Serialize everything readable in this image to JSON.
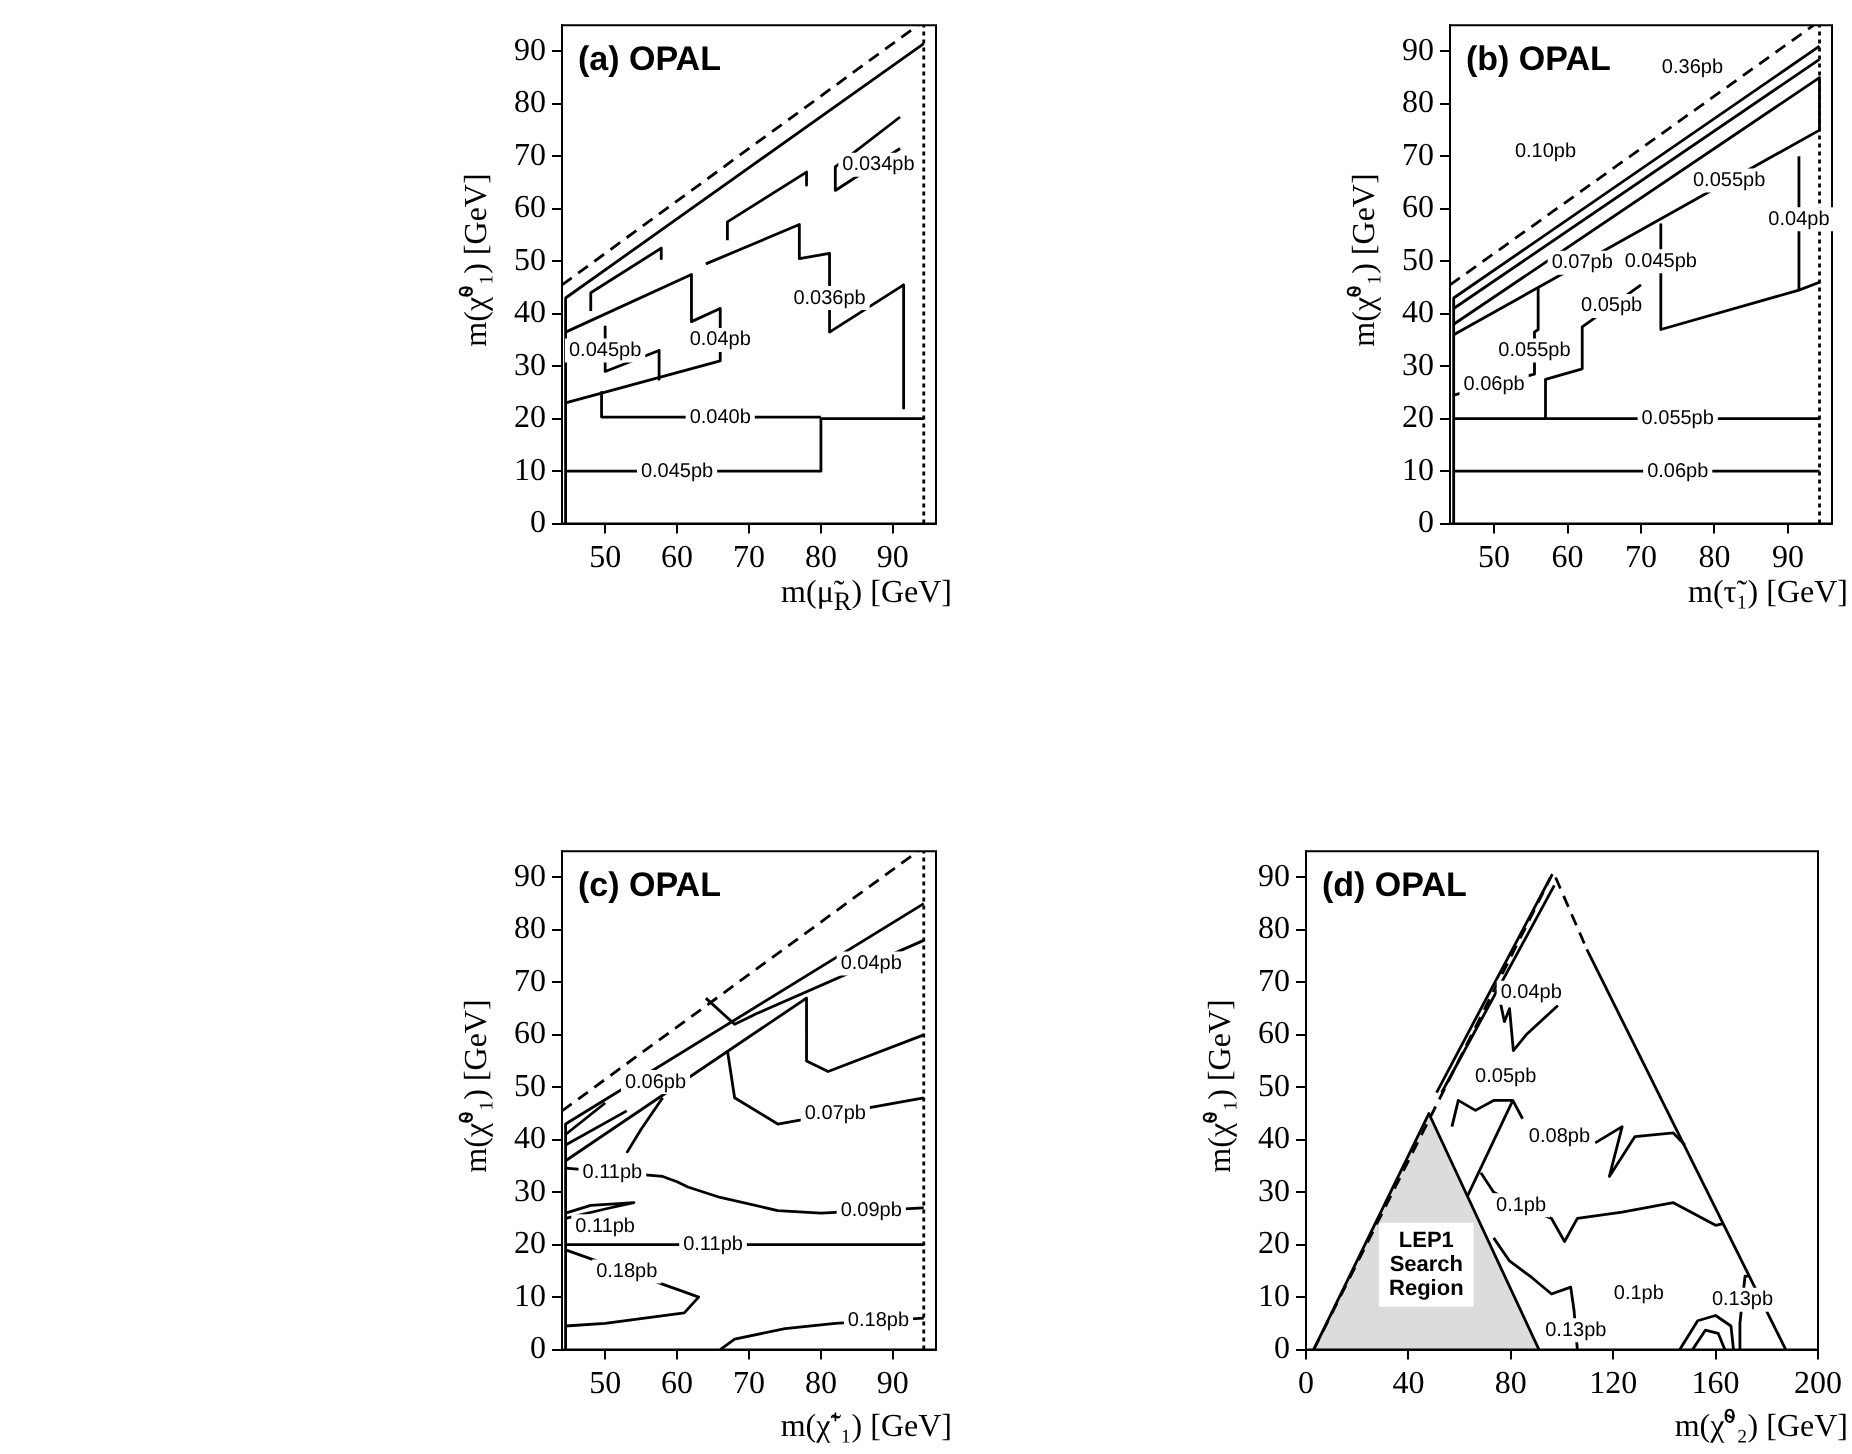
{
  "chart_data": [
    {
      "type": "line",
      "title": "(a) OPAL",
      "xlabel": "m(μ̃$_{R}$) [GeV]",
      "ylabel": "m(χ̃⁰₁) [GeV]",
      "xlim": [
        44,
        96
      ],
      "xticks": [
        50,
        60,
        70,
        80,
        90
      ],
      "ylim": [
        0,
        95
      ],
      "yticks": [
        0,
        10,
        20,
        30,
        40,
        50,
        60,
        70,
        80,
        90
      ],
      "series": [
        {
          "color": "#000000",
          "line_style": "dashed",
          "x": [
            44,
            93.5
          ],
          "values": [
            45.5,
            95
          ]
        },
        {
          "color": "#000000",
          "line_style": "dotted",
          "x": [
            94.3,
            94.3
          ],
          "values": [
            0,
            95
          ]
        },
        {
          "color": "#000000",
          "x": [
            44.5,
            44.5,
            94.3
          ],
          "values": [
            0,
            43,
            91.5
          ]
        },
        {
          "color": "#000000",
          "x": [
            44.5,
            80,
            80,
            94.3
          ],
          "values": [
            10,
            10,
            20,
            20
          ]
        },
        {
          "color": "#000000",
          "x": [
            49.5,
            49.5,
            80
          ],
          "values": [
            25,
            20.3,
            20.3
          ]
        },
        {
          "color": "#000000",
          "x": [
            44.5,
            66,
            66,
            62,
            62,
            44.5
          ],
          "values": [
            23,
            31,
            41,
            38.5,
            47.5,
            36.5
          ]
        },
        {
          "color": "#000000",
          "x": [
            50,
            50,
            57.5,
            57.5
          ],
          "values": [
            37.5,
            29,
            33,
            27.5
          ]
        },
        {
          "color": "#000000",
          "x": [
            48,
            48,
            57.8,
            57.8
          ],
          "values": [
            40.5,
            44,
            52.5,
            50.5
          ]
        },
        {
          "color": "#000000",
          "x": [
            67,
            67,
            78,
            78
          ],
          "values": [
            54,
            57.5,
            67,
            64.5
          ]
        },
        {
          "color": "#000000",
          "x": [
            64,
            77,
            77,
            81.2,
            81.2,
            91.5,
            91.5
          ],
          "values": [
            49.5,
            57,
            50.5,
            51.5,
            36.5,
            45.5,
            22
          ]
        },
        {
          "color": "#000000",
          "x": [
            91,
            82,
            82,
            91
          ],
          "values": [
            77.5,
            68,
            63.5,
            71.5
          ]
        }
      ],
      "annotations": [
        {
          "text": "0.045pb",
          "x": 50,
          "y": 33
        },
        {
          "text": "0.04pb",
          "x": 66,
          "y": 35
        },
        {
          "text": "0.036pb",
          "x": 81.2,
          "y": 43
        },
        {
          "text": "0.034pb",
          "x": 88,
          "y": 68.4
        },
        {
          "text": "0.040b",
          "x": 66,
          "y": 20.3
        },
        {
          "text": "0.045pb",
          "x": 60,
          "y": 10
        }
      ]
    },
    {
      "type": "line",
      "title": "(b) OPAL",
      "xlabel": "m(τ̃₁) [GeV]",
      "ylabel": "m(χ̃⁰₁) [GeV]",
      "xlim": [
        44,
        96
      ],
      "xticks": [
        50,
        60,
        70,
        80,
        90
      ],
      "ylim": [
        0,
        95
      ],
      "yticks": [
        0,
        10,
        20,
        30,
        40,
        50,
        60,
        70,
        80,
        90
      ],
      "series": [
        {
          "color": "#000000",
          "line_style": "dashed",
          "x": [
            44,
            93.5
          ],
          "values": [
            45.5,
            95
          ]
        },
        {
          "color": "#000000",
          "line_style": "dotted",
          "x": [
            94.3,
            94.3
          ],
          "values": [
            0,
            95
          ]
        },
        {
          "color": "#000000",
          "x": [
            44.5,
            44.5,
            94.3
          ],
          "values": [
            0,
            43,
            91
          ]
        },
        {
          "color": "#000000",
          "x": [
            44.5,
            94.3
          ],
          "values": [
            41,
            88.5
          ]
        },
        {
          "color": "#000000",
          "x": [
            44.5,
            94.3,
            94.3
          ],
          "values": [
            38,
            85,
            75
          ]
        },
        {
          "color": "#000000",
          "x": [
            44.5,
            94.3
          ],
          "values": [
            36,
            75
          ]
        },
        {
          "color": "#000000",
          "x": [
            44.5,
            55.5,
            55.5,
            56,
            56
          ],
          "values": [
            24.5,
            28.5,
            36.5,
            37,
            45
          ]
        },
        {
          "color": "#000000",
          "x": [
            57,
            57,
            62,
            62,
            70
          ],
          "values": [
            20,
            27.5,
            29.5,
            37.5,
            45.5
          ]
        },
        {
          "color": "#000000",
          "x": [
            72.7,
            72.7,
            91.5,
            94.3
          ],
          "values": [
            57,
            37,
            44.5,
            46
          ]
        },
        {
          "color": "#000000",
          "x": [
            91.5,
            91.5
          ],
          "values": [
            44.5,
            70
          ]
        },
        {
          "color": "#000000",
          "x": [
            44.5,
            94.3
          ],
          "values": [
            20,
            20
          ]
        },
        {
          "color": "#000000",
          "x": [
            44.5,
            94.3
          ],
          "values": [
            10,
            10
          ]
        }
      ],
      "annotations": [
        {
          "text": "0.36pb",
          "x": 77,
          "y": 87
        },
        {
          "text": "0.10pb",
          "x": 57,
          "y": 71
        },
        {
          "text": "0.055pb",
          "x": 82,
          "y": 65.4
        },
        {
          "text": "0.07pb",
          "x": 62,
          "y": 49.7
        },
        {
          "text": "0.04pb",
          "x": 91.5,
          "y": 58
        },
        {
          "text": "0.06pb",
          "x": 50,
          "y": 26.5
        },
        {
          "text": "0.055pb",
          "x": 55.5,
          "y": 33
        },
        {
          "text": "0.045pb",
          "x": 72.7,
          "y": 50
        },
        {
          "text": "0.05pb",
          "x": 66,
          "y": 41.5
        },
        {
          "text": "0.055pb",
          "x": 75,
          "y": 20
        },
        {
          "text": "0.06pb",
          "x": 75,
          "y": 10
        }
      ]
    },
    {
      "type": "line",
      "title": "(c) OPAL",
      "xlabel": "m(χ̃⁺₁) [GeV]",
      "ylabel": "m(χ̃⁰₁) [GeV]",
      "xlim": [
        44,
        96
      ],
      "xticks": [
        50,
        60,
        70,
        80,
        90
      ],
      "ylim": [
        0,
        95
      ],
      "yticks": [
        0,
        10,
        20,
        30,
        40,
        50,
        60,
        70,
        80,
        90
      ],
      "series": [
        {
          "color": "#000000",
          "line_style": "dashed",
          "x": [
            44,
            93.5
          ],
          "values": [
            45.5,
            95
          ]
        },
        {
          "color": "#000000",
          "line_style": "dotted",
          "x": [
            94.3,
            94.3
          ],
          "values": [
            0,
            95
          ]
        },
        {
          "color": "#000000",
          "x": [
            44.5,
            44.5,
            94.3
          ],
          "values": [
            0,
            43,
            85
          ]
        },
        {
          "color": "#000000",
          "x": [
            44.5,
            78
          ],
          "values": [
            36,
            67
          ]
        },
        {
          "color": "#000000",
          "x": [
            64,
            68,
            71,
            94.3
          ],
          "values": [
            67,
            62,
            64,
            78
          ]
        },
        {
          "color": "#000000",
          "x": [
            78,
            78,
            81,
            94.3
          ],
          "values": [
            67,
            55,
            53,
            60
          ]
        },
        {
          "color": "#000000",
          "x": [
            67,
            68,
            74,
            94.3
          ],
          "values": [
            57,
            48,
            43,
            48
          ]
        },
        {
          "color": "#000000",
          "x": [
            44.5,
            53
          ],
          "values": [
            39,
            45.5
          ]
        },
        {
          "color": "#000000",
          "x": [
            44.5,
            50
          ],
          "values": [
            41,
            47
          ]
        },
        {
          "color": "#000000",
          "x": [
            53,
            55,
            58
          ],
          "values": [
            37.5,
            42,
            48
          ]
        },
        {
          "color": "#000000",
          "x": [
            44.5,
            58,
            60,
            61.5,
            66,
            74,
            80,
            94.3
          ],
          "values": [
            34.6,
            33,
            32,
            31,
            29,
            26.5,
            26,
            27
          ]
        },
        {
          "color": "#000000",
          "x": [
            44.5,
            48,
            54,
            50,
            44.5
          ],
          "values": [
            26,
            27.5,
            28,
            26.8,
            25
          ]
        },
        {
          "color": "#000000",
          "x": [
            44.5,
            94.3
          ],
          "values": [
            20,
            20
          ]
        },
        {
          "color": "#000000",
          "x": [
            44.5,
            61,
            63,
            61,
            50,
            44.5
          ],
          "values": [
            19,
            11,
            10,
            7,
            5,
            4.5
          ]
        },
        {
          "color": "#000000",
          "x": [
            66,
            68,
            75,
            82,
            94.3
          ],
          "values": [
            0,
            2,
            4,
            5,
            6
          ]
        }
      ],
      "annotations": [
        {
          "text": "0.04pb",
          "x": 87,
          "y": 73.6
        },
        {
          "text": "0.06pb",
          "x": 57,
          "y": 51
        },
        {
          "text": "0.07pb",
          "x": 82,
          "y": 45
        },
        {
          "text": "0.11pb",
          "x": 51,
          "y": 33.8
        },
        {
          "text": "0.09pb",
          "x": 87,
          "y": 26.5
        },
        {
          "text": "0.11pb",
          "x": 50,
          "y": 23.5
        },
        {
          "text": "0.11pb",
          "x": 65,
          "y": 20
        },
        {
          "text": "0.18pb",
          "x": 53,
          "y": 14.9
        },
        {
          "text": "0.18pb",
          "x": 88,
          "y": 5.5
        }
      ]
    },
    {
      "type": "line",
      "title": "(d) OPAL",
      "xlabel": "m(χ̃⁰₂) [GeV]",
      "ylabel": "m(χ̃⁰₁) [GeV]",
      "xlim": [
        0,
        200
      ],
      "xticks": [
        0,
        40,
        80,
        120,
        160,
        200
      ],
      "ylim": [
        0,
        95
      ],
      "yticks": [
        0,
        10,
        20,
        30,
        40,
        50,
        60,
        70,
        80,
        90
      ],
      "series": [
        {
          "type": "area",
          "color": "#dcdcdc",
          "x": [
            3,
            48,
            91
          ],
          "values": [
            0,
            45,
            0
          ]
        },
        {
          "color": "#000000",
          "line_style": "dashed",
          "x": [
            3,
            96.6,
            109.7
          ],
          "values": [
            0,
            91,
            76.3
          ]
        },
        {
          "color": "#000000",
          "x": [
            109.7,
            187.4
          ],
          "values": [
            76.3,
            0
          ]
        },
        {
          "color": "#000000",
          "x": [
            51,
            95.5
          ],
          "values": [
            49,
            90
          ]
        },
        {
          "color": "#000000",
          "x": [
            53,
            97
          ],
          "values": [
            49,
            88.5
          ]
        },
        {
          "color": "#000000",
          "x": [
            76,
            77.5,
            79.5,
            81,
            86,
            98.4
          ],
          "values": [
            66,
            62.5,
            65,
            57,
            60,
            65.6
          ]
        },
        {
          "color": "#000000",
          "x": [
            57,
            59.5,
            66.2,
            73.3,
            80.8,
            84.6
          ],
          "values": [
            42.5,
            47.5,
            45.6,
            47.5,
            47.5,
            44
          ]
        },
        {
          "color": "#000000",
          "x": [
            63.2,
            80.8
          ],
          "values": [
            29.4,
            47.5
          ]
        },
        {
          "color": "#000000",
          "x": [
            113,
            123.5,
            118.5,
            128.5,
            143.5,
            148
          ],
          "values": [
            39.4,
            42.5,
            33,
            40.6,
            41.3,
            39
          ]
        },
        {
          "color": "#000000",
          "x": [
            68.3,
            73.3,
            83.3,
            95.9,
            101,
            106,
            123.5,
            143.5,
            160,
            163
          ],
          "values": [
            33.7,
            30,
            27.5,
            25,
            20.6,
            25,
            26.2,
            28,
            23.7,
            24
          ]
        },
        {
          "color": "#000000",
          "x": [
            73.3,
            79.5,
            88.3,
            95.9,
            103.4,
            104.7,
            106
          ],
          "values": [
            21.3,
            16.9,
            13.7,
            10.6,
            11.9,
            7.5,
            0
          ]
        },
        {
          "color": "#000000",
          "x": [
            146,
            153,
            160,
            166,
            167
          ],
          "values": [
            0,
            5.5,
            6.5,
            4.5,
            0
          ]
        },
        {
          "color": "#000000",
          "x": [
            151,
            156,
            161,
            163.6
          ],
          "values": [
            0,
            3.7,
            3.1,
            0
          ]
        },
        {
          "color": "#000000",
          "x": [
            169,
            169.5,
            171.5,
            173.2
          ],
          "values": [
            0,
            5,
            14,
            14
          ]
        }
      ],
      "annotations": [
        {
          "text": "0.04pb",
          "x": 88,
          "y": 68
        },
        {
          "text": "0.05pb",
          "x": 78,
          "y": 52
        },
        {
          "text": "0.08pb",
          "x": 99,
          "y": 40.6
        },
        {
          "text": "0.1pb",
          "x": 84,
          "y": 27.5
        },
        {
          "text": "0.13pb",
          "x": 105.4,
          "y": 3.7
        },
        {
          "text": "0.1pb",
          "x": 130,
          "y": 10.6
        },
        {
          "text": "0.13pb",
          "x": 170.5,
          "y": 9.5
        },
        "LEP1 Search Region"
      ]
    }
  ]
}
